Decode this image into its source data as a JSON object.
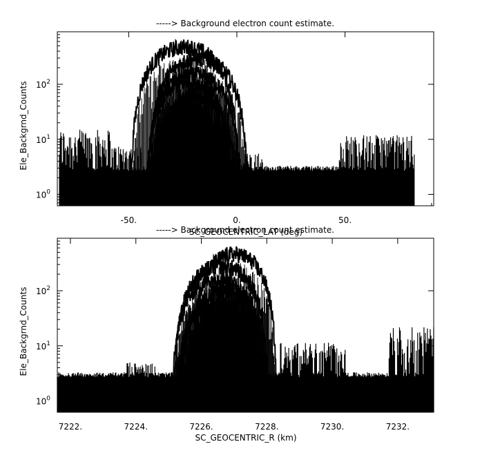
{
  "chart_data": [
    {
      "type": "line",
      "title": "-----> Background electron count estimate.",
      "xlabel": "SC_GEOCENTRIC_LAT (deg)",
      "ylabel": "Ele_Backgrnd_Counts",
      "yscale": "log",
      "xlim": [
        -83,
        91
      ],
      "ylim": [
        0.62,
        900
      ],
      "x_ticks": [
        {
          "value": -50,
          "label": "-50."
        },
        {
          "value": 0,
          "label": "0."
        },
        {
          "value": 50,
          "label": "50."
        }
      ],
      "y_ticks": [
        {
          "value": 1,
          "label": "10^0"
        },
        {
          "value": 10,
          "label": "10^1"
        },
        {
          "value": 100,
          "label": "10^2"
        }
      ],
      "x_data_range": [
        -82,
        82
      ],
      "baseline_counts": 3,
      "floor_counts": 1,
      "noise_regions": [
        {
          "x": [
            -82,
            -58
          ],
          "max_counts": 15
        },
        {
          "x": [
            -58,
            -44
          ],
          "max_counts": 8
        },
        {
          "x": [
            -12,
            12
          ],
          "max_counts": 6
        },
        {
          "x": [
            12,
            47
          ],
          "max_counts": 2
        },
        {
          "x": [
            47,
            82
          ],
          "max_counts": 12
        }
      ],
      "series": [
        {
          "center": -24,
          "halfwidth": 25,
          "peak": 470
        },
        {
          "center": -18,
          "halfwidth": 23,
          "peak": 290
        },
        {
          "center": -20,
          "halfwidth": 22,
          "peak": 150
        },
        {
          "center": -22,
          "halfwidth": 20,
          "peak": 110
        },
        {
          "center": -19,
          "halfwidth": 19,
          "peak": 60
        },
        {
          "center": -23,
          "halfwidth": 17,
          "peak": 35
        },
        {
          "center": -21,
          "halfwidth": 14,
          "peak": 30
        }
      ]
    },
    {
      "type": "line",
      "title": "-----> Background electron count estimate.",
      "xlabel": "SC_GEOCENTRIC_R (km)",
      "ylabel": "Ele_Backgrnd_Counts",
      "yscale": "log",
      "xlim": [
        7221.6,
        7233.1
      ],
      "ylim": [
        0.62,
        900
      ],
      "x_ticks": [
        {
          "value": 7222,
          "label": "7222."
        },
        {
          "value": 7224,
          "label": "7224."
        },
        {
          "value": 7226,
          "label": "7226."
        },
        {
          "value": 7228,
          "label": "7228."
        },
        {
          "value": 7230,
          "label": "7230."
        },
        {
          "value": 7232,
          "label": "7232."
        }
      ],
      "y_ticks": [
        {
          "value": 1,
          "label": "10^0"
        },
        {
          "value": 10,
          "label": "10^1"
        },
        {
          "value": 100,
          "label": "10^2"
        }
      ],
      "x_data_range": [
        7221.6,
        7233.1
      ],
      "baseline_counts": 3,
      "floor_counts": 1,
      "noise_regions": [
        {
          "x": [
            7221.6,
            7223.7
          ],
          "max_counts": 3
        },
        {
          "x": [
            7223.7,
            7224.6
          ],
          "max_counts": 5
        },
        {
          "x": [
            7228.4,
            7230.4
          ],
          "max_counts": 12
        },
        {
          "x": [
            7231.7,
            7233.1
          ],
          "max_counts": 22
        }
      ],
      "series": [
        {
          "center": 7227.0,
          "halfwidth": 1.3,
          "peak": 460
        },
        {
          "center": 7226.6,
          "halfwidth": 1.45,
          "peak": 280
        },
        {
          "center": 7226.5,
          "halfwidth": 1.4,
          "peak": 165
        },
        {
          "center": 7226.7,
          "halfwidth": 1.35,
          "peak": 100
        },
        {
          "center": 7226.4,
          "halfwidth": 1.2,
          "peak": 55
        },
        {
          "center": 7226.6,
          "halfwidth": 1.0,
          "peak": 28
        },
        {
          "center": 7226.5,
          "halfwidth": 0.8,
          "peak": 25
        }
      ]
    }
  ]
}
